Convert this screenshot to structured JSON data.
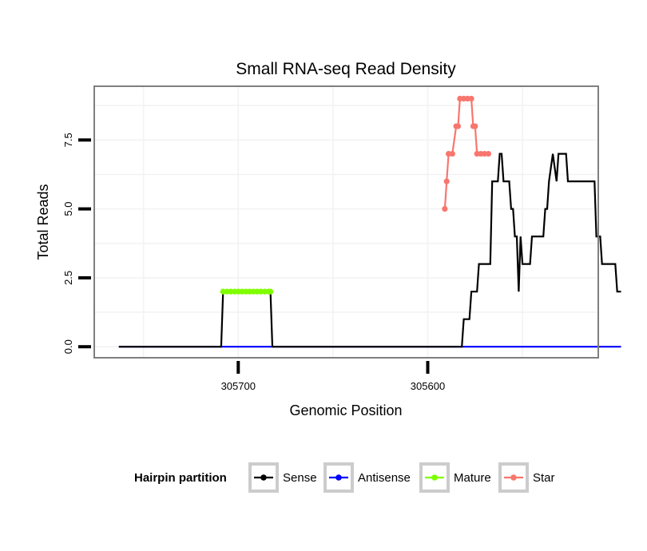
{
  "chart_data": {
    "type": "line",
    "title": "Small RNA-seq Read Density",
    "xlabel": "Genomic Position",
    "ylabel": "Total Reads",
    "x_reversed": true,
    "xlim": [
      305776,
      305510
    ],
    "ylim": [
      -0.4,
      9.45
    ],
    "x_ticks": [
      {
        "value": 305700,
        "label": "305700"
      },
      {
        "value": 305600,
        "label": "305600"
      }
    ],
    "y_ticks": [
      {
        "value": 0,
        "label": "0.0"
      },
      {
        "value": 2.5,
        "label": "2.5"
      },
      {
        "value": 5,
        "label": "5.0"
      },
      {
        "value": 7.5,
        "label": "7.5"
      }
    ],
    "series": [
      {
        "name": "Sense",
        "color": "#000000",
        "points": [
          [
            305763,
            0
          ],
          [
            305709,
            0
          ],
          [
            305708,
            2
          ],
          [
            305683,
            2
          ],
          [
            305682,
            0
          ],
          [
            305582,
            0
          ],
          [
            305581,
            1
          ],
          [
            305578,
            1
          ],
          [
            305577,
            2
          ],
          [
            305574,
            2
          ],
          [
            305573,
            3
          ],
          [
            305567,
            3
          ],
          [
            305566,
            6
          ],
          [
            305563,
            6
          ],
          [
            305562,
            7
          ],
          [
            305561,
            7
          ],
          [
            305560,
            6
          ],
          [
            305557,
            6
          ],
          [
            305556,
            5
          ],
          [
            305555,
            5
          ],
          [
            305554,
            4
          ],
          [
            305553,
            4
          ],
          [
            305552,
            2
          ],
          [
            305551,
            4
          ],
          [
            305550,
            3
          ],
          [
            305546,
            3
          ],
          [
            305545,
            4
          ],
          [
            305539,
            4
          ],
          [
            305538,
            5
          ],
          [
            305537,
            5
          ],
          [
            305536,
            6
          ],
          [
            305534,
            7
          ],
          [
            305532,
            6
          ],
          [
            305531,
            7
          ],
          [
            305527,
            7
          ],
          [
            305526,
            6
          ],
          [
            305512,
            6
          ],
          [
            305511,
            4
          ],
          [
            305509,
            4
          ],
          [
            305508,
            3
          ],
          [
            305501,
            3
          ],
          [
            305500,
            2
          ],
          [
            305498,
            2
          ]
        ]
      },
      {
        "name": "Antisense",
        "color": "#0000ff",
        "points": [
          [
            305763,
            0
          ],
          [
            305498,
            0
          ]
        ]
      },
      {
        "name": "Mature",
        "color": "#7fff00",
        "points": [
          [
            305708,
            2
          ],
          [
            305706,
            2
          ],
          [
            305704,
            2
          ],
          [
            305702,
            2
          ],
          [
            305700,
            2
          ],
          [
            305698,
            2
          ],
          [
            305696,
            2
          ],
          [
            305694,
            2
          ],
          [
            305692,
            2
          ],
          [
            305690,
            2
          ],
          [
            305688,
            2
          ],
          [
            305686,
            2
          ],
          [
            305684,
            2
          ],
          [
            305683,
            2
          ]
        ]
      },
      {
        "name": "Star",
        "color": "#f8766d",
        "points": [
          [
            305591,
            5
          ],
          [
            305590,
            6
          ],
          [
            305589,
            7
          ],
          [
            305587,
            7
          ],
          [
            305585,
            8
          ],
          [
            305584,
            8
          ],
          [
            305583,
            9
          ],
          [
            305581,
            9
          ],
          [
            305579,
            9
          ],
          [
            305577,
            9
          ],
          [
            305576,
            8
          ],
          [
            305575,
            8
          ],
          [
            305574,
            7
          ],
          [
            305572,
            7
          ],
          [
            305570,
            7
          ],
          [
            305568,
            7
          ]
        ]
      }
    ],
    "legend": {
      "title": "Hairpin partition",
      "position": "bottom",
      "entries": [
        "Sense",
        "Antisense",
        "Mature",
        "Star"
      ]
    }
  }
}
